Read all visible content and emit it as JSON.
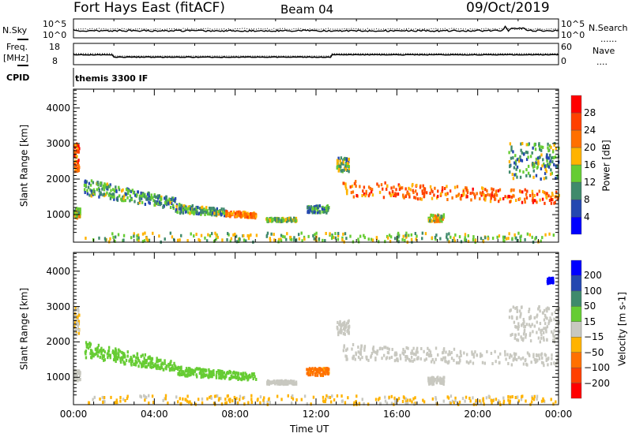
{
  "header": {
    "title": "Fort Hays East (fitACF)",
    "beam": "Beam 04",
    "date": "09/Oct/2019"
  },
  "nsky_panel": {
    "left_label": "N.Sky",
    "left_ticks": [
      "10^5",
      "10^0"
    ],
    "right_ticks": [
      "10^5",
      "10^0"
    ],
    "right_label": "N.Search",
    "right_legend": "......"
  },
  "freq_panel": {
    "left_label_1": "Freq.",
    "left_label_2": "[MHz]",
    "left_ticks": [
      "18",
      "8"
    ],
    "right_ticks": [
      "60",
      "0"
    ],
    "right_label": "Nave",
    "right_legend": "...."
  },
  "cpid_panel": {
    "label": "CPID",
    "value": "themis 3300 IF"
  },
  "chart_data": [
    {
      "type": "heatmap",
      "title": "Power",
      "ylabel": "Slant Range [km]",
      "xlabel": "Time UT",
      "xlim": [
        0,
        24
      ],
      "ylim": [
        225,
        4530
      ],
      "yticks": [
        "4000",
        "3000",
        "2000",
        "1000"
      ],
      "yticks_values": [
        4000,
        3000,
        2000,
        1000
      ],
      "colorbar": {
        "label": "Power [dB]",
        "ticks": [
          "28",
          "24",
          "20",
          "16",
          "12",
          "8",
          "4"
        ],
        "colors": [
          "#0000ff",
          "#2448b0",
          "#3f8a6c",
          "#66cc33",
          "#ffb300",
          "#ff7000",
          "#ff4000",
          "#ff0000"
        ]
      },
      "bands": [
        {
          "t": [
            0.0,
            0.25
          ],
          "r": [
            2200,
            3000
          ],
          "v": 24
        },
        {
          "t": [
            0.0,
            0.3
          ],
          "r": [
            900,
            1200
          ],
          "v": 16
        },
        {
          "t": [
            0.5,
            5.0
          ],
          "r": [
            1550,
            2000
          ],
          "r_end": [
            1150,
            1450
          ],
          "v": 11
        },
        {
          "t": [
            5.0,
            7.5
          ],
          "r": [
            1050,
            1300
          ],
          "r_end": [
            950,
            1150
          ],
          "v": 12
        },
        {
          "t": [
            7.5,
            9.0
          ],
          "r": [
            950,
            1100
          ],
          "r_end": [
            900,
            1050
          ],
          "v": 22
        },
        {
          "t": [
            9.5,
            11.0
          ],
          "r": [
            800,
            900
          ],
          "v": 14
        },
        {
          "t": [
            11.5,
            12.6
          ],
          "r": [
            1050,
            1250
          ],
          "v": 10
        },
        {
          "t": [
            13.0,
            13.6
          ],
          "r": [
            2200,
            2600
          ],
          "v": 13
        },
        {
          "t": [
            13.3,
            24.0
          ],
          "r": [
            1500,
            1950
          ],
          "r_end": [
            1300,
            1650
          ],
          "v": 23
        },
        {
          "t": [
            17.5,
            18.3
          ],
          "r": [
            800,
            1000
          ],
          "v": 16
        },
        {
          "t": [
            21.5,
            24.0
          ],
          "r": [
            2000,
            3000
          ],
          "v": 12
        },
        {
          "t": [
            0.5,
            24.0
          ],
          "r": [
            225,
            480
          ],
          "v": 14
        }
      ]
    },
    {
      "type": "heatmap",
      "title": "Velocity",
      "ylabel": "Slant Range [km]",
      "xlabel": "Time UT",
      "xlim": [
        0,
        24
      ],
      "ylim": [
        225,
        4530
      ],
      "yticks": [
        "4000",
        "3000",
        "2000",
        "1000"
      ],
      "yticks_values": [
        4000,
        3000,
        2000,
        1000
      ],
      "xticks": [
        "00:00",
        "04:00",
        "08:00",
        "12:00",
        "16:00",
        "20:00",
        "00:00"
      ],
      "colorbar": {
        "label": "Velocity [m s-1]",
        "ticks": [
          "200",
          "100",
          "50",
          "15",
          "−15",
          "−50",
          "−100",
          "−200"
        ],
        "colors": [
          "#ff0000",
          "#ff4000",
          "#ff7000",
          "#ffb300",
          "#c8c8c0",
          "#66cc33",
          "#3f8a6c",
          "#2448b0",
          "#0000ff"
        ]
      },
      "bands": [
        {
          "t": [
            0.0,
            0.25
          ],
          "r": [
            2200,
            3000
          ],
          "v": -10
        },
        {
          "t": [
            0.0,
            0.3
          ],
          "r": [
            900,
            1200
          ],
          "v": 0
        },
        {
          "t": [
            0.5,
            5.0
          ],
          "r": [
            1550,
            2000
          ],
          "r_end": [
            1150,
            1450
          ],
          "v": 30
        },
        {
          "t": [
            5.0,
            9.0
          ],
          "r": [
            1050,
            1300
          ],
          "r_end": [
            900,
            1100
          ],
          "v": 30
        },
        {
          "t": [
            9.5,
            11.0
          ],
          "r": [
            800,
            900
          ],
          "v": 0
        },
        {
          "t": [
            11.5,
            12.6
          ],
          "r": [
            1050,
            1250
          ],
          "v": -60
        },
        {
          "t": [
            13.0,
            13.6
          ],
          "r": [
            2200,
            2600
          ],
          "v": 0
        },
        {
          "t": [
            13.3,
            24.0
          ],
          "r": [
            1500,
            1950
          ],
          "r_end": [
            1300,
            1650
          ],
          "v": 0
        },
        {
          "t": [
            17.5,
            18.3
          ],
          "r": [
            800,
            1000
          ],
          "v": 0
        },
        {
          "t": [
            21.5,
            24.0
          ],
          "r": [
            2000,
            3000
          ],
          "v": 0
        },
        {
          "t": [
            23.4,
            23.7
          ],
          "r": [
            3650,
            3800
          ],
          "v": 250
        },
        {
          "t": [
            0.5,
            24.0
          ],
          "r": [
            225,
            480
          ],
          "v": -20
        }
      ]
    }
  ]
}
